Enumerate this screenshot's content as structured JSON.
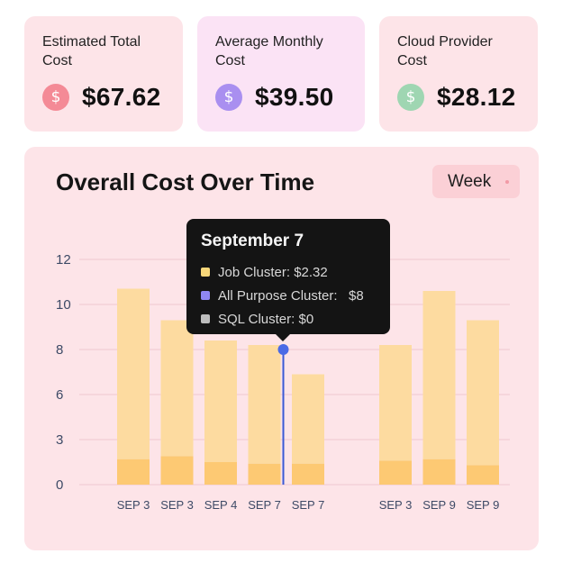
{
  "stats": [
    {
      "label": "Estimated Total Cost",
      "value": "$67.62",
      "icon": "dollar-icon",
      "card_color": "#fde4e8",
      "icon_color": "#f48a96"
    },
    {
      "label": "Average Monthly Cost",
      "value": "$39.50",
      "icon": "dollar-icon",
      "card_color": "#fbe3f5",
      "icon_color": "#a98ff0"
    },
    {
      "label": "Cloud Provider Cost",
      "value": "$28.12",
      "icon": "dollar-icon",
      "card_color": "#fde4e8",
      "icon_color": "#9fd6b2"
    }
  ],
  "chart_card": {
    "title": "Overall Cost Over Time",
    "period_label": "Week"
  },
  "tooltip": {
    "title": "September 7",
    "rows": [
      {
        "label": "Job Cluster: $2.32",
        "color": "#f7d77a"
      },
      {
        "label": "All Purpose Cluster:   $8",
        "color": "#8f86f2"
      },
      {
        "label": "SQL Cluster: $0",
        "color": "#bdbdbd"
      }
    ]
  },
  "chart_data": {
    "type": "bar",
    "title": "Overall Cost Over Time",
    "xlabel": "",
    "ylabel": "",
    "yticks": [
      0,
      3,
      6,
      8,
      10,
      12
    ],
    "categories": [
      "SEP 3",
      "SEP 3",
      "SEP 4",
      "SEP 7",
      "SEP 7",
      "SEP 3",
      "SEP 9",
      "SEP 9"
    ],
    "slot_index": [
      0,
      1,
      2,
      3,
      4,
      6,
      7,
      8
    ],
    "series": [
      {
        "values": [
          1.7,
          1.9,
          1.5,
          1.4,
          1.4,
          1.6,
          1.7,
          1.3
        ],
        "color": "#fdc973"
      },
      {
        "values": [
          9.0,
          7.4,
          6.9,
          6.8,
          5.5,
          6.6,
          8.9,
          8.0
        ],
        "color": "#fddba0"
      }
    ],
    "hover_category_index": 3,
    "hover_value": 8.0,
    "grid": true,
    "legend": "tooltip",
    "colors": {
      "grid": "#f0c9cf",
      "hover_line": "#3b5ad6",
      "hover_dot": "#4a6ae6"
    }
  }
}
